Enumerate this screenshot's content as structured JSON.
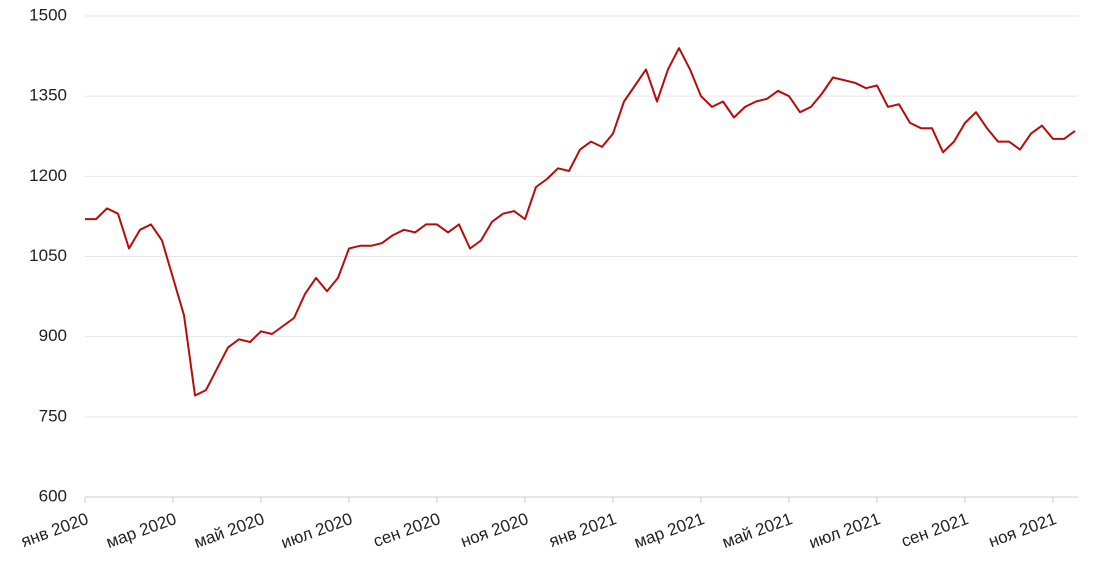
{
  "chart_data": {
    "type": "line",
    "categories": [
      "янв 2020",
      null,
      null,
      null,
      null,
      null,
      null,
      null,
      "мар 2020",
      null,
      null,
      null,
      null,
      null,
      null,
      null,
      "май 2020",
      null,
      null,
      null,
      null,
      null,
      null,
      null,
      "июл 2020",
      null,
      null,
      null,
      null,
      null,
      null,
      null,
      "сен 2020",
      null,
      null,
      null,
      null,
      null,
      null,
      null,
      "ноя 2020",
      null,
      null,
      null,
      null,
      null,
      null,
      null,
      "янв 2021",
      null,
      null,
      null,
      null,
      null,
      null,
      null,
      "мар 2021",
      null,
      null,
      null,
      null,
      null,
      null,
      null,
      "май 2021",
      null,
      null,
      null,
      null,
      null,
      null,
      null,
      "июл 2021",
      null,
      null,
      null,
      null,
      null,
      null,
      null,
      "сен 2021",
      null,
      null,
      null,
      null,
      null,
      null,
      null,
      "ноя 2021",
      null,
      null
    ],
    "values": [
      1120,
      1120,
      1140,
      1130,
      1065,
      1100,
      1110,
      1080,
      1010,
      940,
      790,
      800,
      840,
      880,
      895,
      890,
      910,
      905,
      920,
      935,
      980,
      1010,
      985,
      1010,
      1065,
      1070,
      1070,
      1075,
      1090,
      1100,
      1095,
      1110,
      1110,
      1095,
      1110,
      1065,
      1080,
      1115,
      1130,
      1135,
      1120,
      1180,
      1195,
      1215,
      1210,
      1250,
      1265,
      1255,
      1280,
      1340,
      1370,
      1400,
      1340,
      1400,
      1440,
      1400,
      1350,
      1330,
      1340,
      1310,
      1330,
      1340,
      1345,
      1360,
      1350,
      1320,
      1330,
      1355,
      1385,
      1380,
      1375,
      1365,
      1370,
      1330,
      1335,
      1300,
      1290,
      1290,
      1245,
      1265,
      1300,
      1320,
      1290,
      1265,
      1265,
      1250,
      1280,
      1295,
      1270,
      1270,
      1285
    ],
    "color": "#b50d0d",
    "ylim": [
      600,
      1500
    ],
    "yticks": [
      600,
      750,
      900,
      1050,
      1200,
      1350,
      1500
    ],
    "grid": true
  }
}
